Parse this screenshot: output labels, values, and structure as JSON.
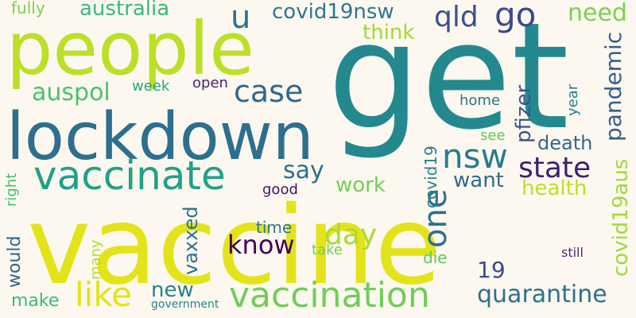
{
  "words": {
    "vaccine": {
      "text": "vaccine",
      "color": "#e4e31a"
    },
    "get": {
      "text": "get",
      "color": "#23898e"
    },
    "people": {
      "text": "people",
      "color": "#bcdf27"
    },
    "lockdown": {
      "text": "lockdown",
      "color": "#2d6f8e"
    },
    "vaccinate": {
      "text": "vaccinate",
      "color": "#1fa187"
    },
    "vaccination": {
      "text": "vaccination",
      "color": "#6ece58"
    },
    "go": {
      "text": "go",
      "color": "#3e4989"
    },
    "u": {
      "text": "u",
      "color": "#2c728e"
    },
    "qld": {
      "text": "qld",
      "color": "#3b528b"
    },
    "need": {
      "text": "need",
      "color": "#7ad151"
    },
    "covid19nsw": {
      "text": "covid19nsw",
      "color": "#2a788e"
    },
    "australia": {
      "text": "australia",
      "color": "#3aba76"
    },
    "fully": {
      "text": "fully",
      "color": "#7ad151"
    },
    "think": {
      "text": "think",
      "color": "#a0da39"
    },
    "case": {
      "text": "case",
      "color": "#31688e"
    },
    "auspol": {
      "text": "auspol",
      "color": "#4ac16d"
    },
    "week": {
      "text": "week",
      "color": "#22a785"
    },
    "open": {
      "text": "open",
      "color": "#482475"
    },
    "nsw": {
      "text": "nsw",
      "color": "#287c8e"
    },
    "state": {
      "text": "state",
      "color": "#3e1f6e"
    },
    "say": {
      "text": "say",
      "color": "#2c728e"
    },
    "home": {
      "text": "home",
      "color": "#2c728e"
    },
    "see": {
      "text": "see",
      "color": "#5ec962"
    },
    "death": {
      "text": "death",
      "color": "#31688e"
    },
    "health": {
      "text": "health",
      "color": "#bddf26"
    },
    "want": {
      "text": "want",
      "color": "#306a8e"
    },
    "work": {
      "text": "work",
      "color": "#70cf57"
    },
    "good": {
      "text": "good",
      "color": "#471164"
    },
    "day": {
      "text": "day",
      "color": "#a8db34"
    },
    "one": {
      "text": "one",
      "color": "#2d708e"
    },
    "know": {
      "text": "know",
      "color": "#440154"
    },
    "time": {
      "text": "time",
      "color": "#2a788e"
    },
    "take": {
      "text": "take",
      "color": "#6ece58"
    },
    "like": {
      "text": "like",
      "color": "#e2e418"
    },
    "new": {
      "text": "new",
      "color": "#26828e"
    },
    "make": {
      "text": "make",
      "color": "#3aba76"
    },
    "government": {
      "text": "government",
      "color": "#25858e"
    },
    "quarantine": {
      "text": "quarantine",
      "color": "#2c728e"
    },
    "n19": {
      "text": "19",
      "color": "#3e4989"
    },
    "die": {
      "text": "die",
      "color": "#5ec962"
    },
    "still": {
      "text": "still",
      "color": "#482878"
    },
    "pandemic": {
      "text": "pandemic",
      "color": "#355f8d"
    },
    "covid19aus": {
      "text": "covid19aus",
      "color": "#a0da39"
    },
    "year": {
      "text": "year",
      "color": "#287c8e"
    },
    "pfizer": {
      "text": "pfizer",
      "color": "#3b528b"
    },
    "covid19": {
      "text": "covid19",
      "color": "#26828e"
    },
    "right": {
      "text": "right",
      "color": "#44bf70"
    },
    "would": {
      "text": "would",
      "color": "#33638d"
    },
    "vaxxed": {
      "text": "vaxxed",
      "color": "#2c728e"
    },
    "many": {
      "text": "many",
      "color": "#b5de2b"
    }
  }
}
